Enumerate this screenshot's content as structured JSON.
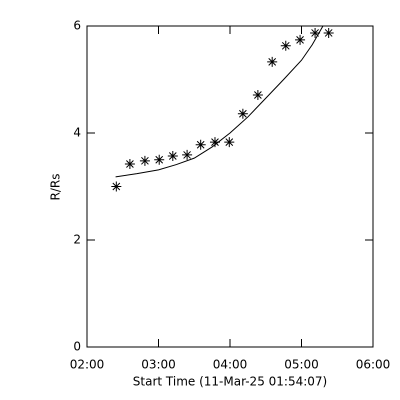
{
  "chart_data": {
    "type": "scatter",
    "xlabel": "Start Time (11-Mar-25 01:54:07)",
    "ylabel": "R/Rs",
    "xlim": [
      2,
      6
    ],
    "xticks": [
      {
        "value": 2,
        "label": "02:00"
      },
      {
        "value": 3,
        "label": "03:00"
      },
      {
        "value": 4,
        "label": "04:00"
      },
      {
        "value": 5,
        "label": "05:00"
      },
      {
        "value": 6,
        "label": "06:00"
      }
    ],
    "ylim": [
      0,
      6
    ],
    "yticks": [
      0,
      2,
      4,
      6
    ],
    "series": [
      {
        "type": "scatter",
        "color": "#000000",
        "x": [
          2.41,
          2.6,
          2.81,
          3.01,
          3.2,
          3.4,
          3.59,
          3.79,
          3.99,
          4.18,
          4.39,
          4.59,
          4.78,
          4.98,
          5.19,
          5.38
        ],
        "values": [
          3.0,
          3.42,
          3.48,
          3.5,
          3.57,
          3.59,
          3.78,
          3.83,
          3.83,
          4.36,
          4.71,
          5.33,
          5.63,
          5.74,
          5.87,
          5.87
        ]
      },
      {
        "type": "line",
        "color": "#000000",
        "x": [
          2.4,
          2.7,
          3.0,
          3.25,
          3.5,
          3.75,
          4.0,
          4.25,
          4.5,
          4.75,
          5.0,
          5.15,
          5.3
        ],
        "values": [
          3.18,
          3.24,
          3.31,
          3.41,
          3.53,
          3.74,
          4.0,
          4.3,
          4.65,
          5.0,
          5.36,
          5.65,
          6.0
        ]
      }
    ]
  }
}
